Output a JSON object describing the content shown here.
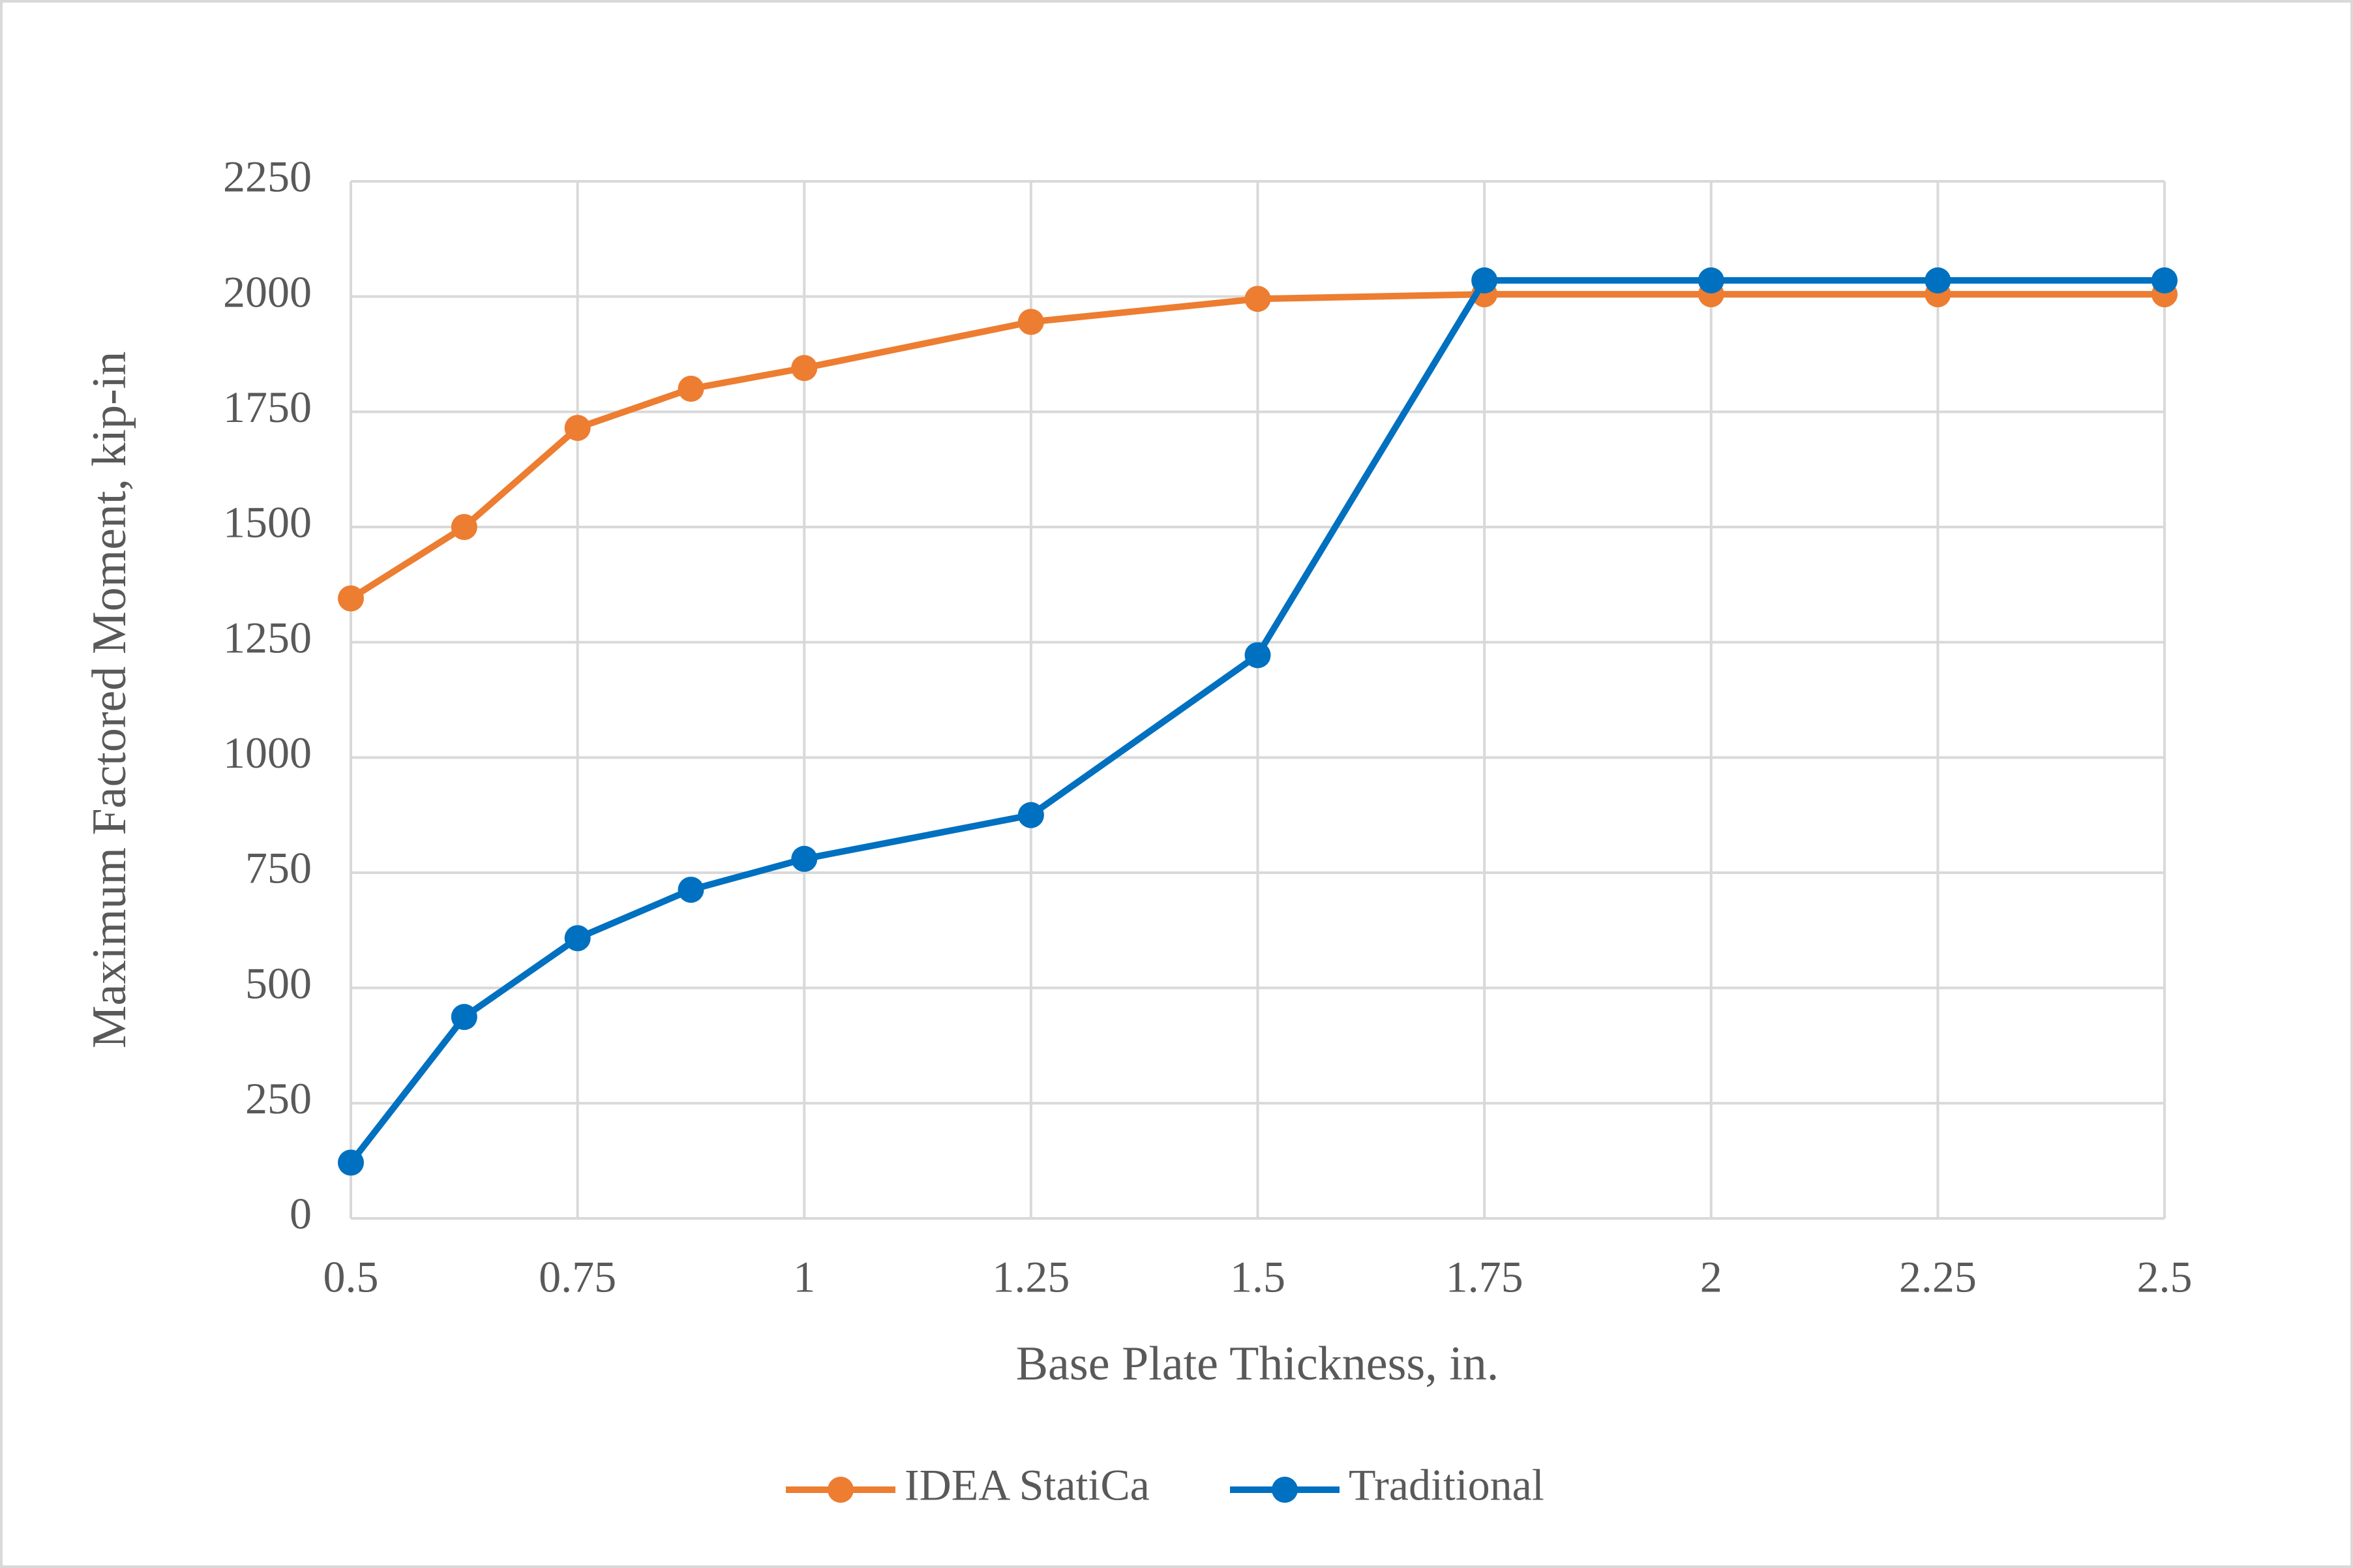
{
  "chart_data": {
    "type": "line",
    "x_label": "Base Plate Thickness, in.",
    "y_label": "Maximum Factored Moment, kip-in",
    "x": [
      0.5,
      0.625,
      0.75,
      0.875,
      1,
      1.25,
      1.5,
      1.75,
      2,
      2.25,
      2.5
    ],
    "series": [
      {
        "name": "IDEA StatiCa",
        "color": "#ed7d31",
        "values": [
          1345,
          1500,
          1715,
          1800,
          1845,
          1945,
          1995,
          2005,
          2005,
          2005,
          2005
        ]
      },
      {
        "name": "Traditional",
        "color": "#0070c0",
        "values": [
          121,
          437,
          608,
          713,
          780,
          875,
          1222,
          2035,
          2035,
          2035,
          2035
        ]
      }
    ],
    "xlim": [
      0.5,
      2.5
    ],
    "xticks": [
      0.5,
      0.75,
      1,
      1.25,
      1.5,
      1.75,
      2,
      2.25,
      2.5
    ],
    "ylim": [
      0,
      2250
    ],
    "yticks": [
      0,
      250,
      500,
      750,
      1000,
      1250,
      1500,
      1750,
      2000,
      2250
    ],
    "grid": true,
    "legend": "bottom"
  }
}
